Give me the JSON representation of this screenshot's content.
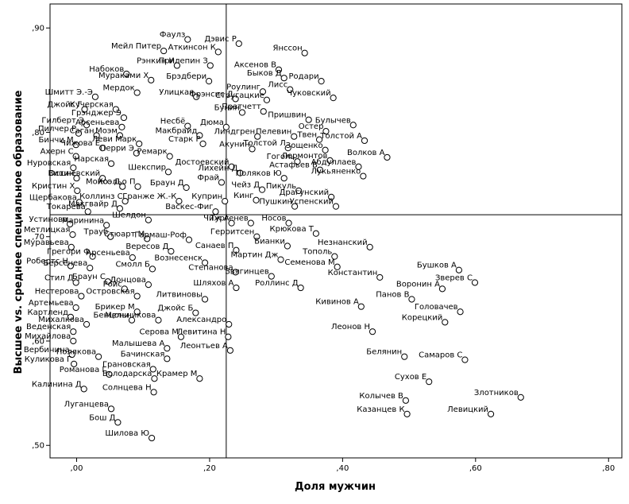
{
  "chart_data": {
    "type": "scatter",
    "title": "",
    "xlabel": "Доля мужчин",
    "ylabel": "Высшее vs. среднее специальное образование",
    "xlim": [
      -0.04,
      0.82
    ],
    "ylim": [
      0.488,
      0.923
    ],
    "xticks": [
      0.0,
      0.2,
      0.4,
      0.6,
      0.8
    ],
    "yticks": [
      0.5,
      0.6,
      0.7,
      0.8,
      0.9
    ],
    "xtick_labels": [
      ",00",
      ",20",
      ",40",
      ",60",
      ",80"
    ],
    "ytick_labels": [
      ",50",
      ",60",
      ",70",
      ",80",
      ",90"
    ],
    "reference_lines": {
      "x": 0.225,
      "y": 0.721
    },
    "grid": false,
    "legend": "none",
    "points": [
      {
        "label": "Фаулз",
        "x": 0.167,
        "y": 0.889
      },
      {
        "label": "Дэвис Р",
        "x": 0.244,
        "y": 0.885
      },
      {
        "label": "Мейл Питер",
        "x": 0.131,
        "y": 0.878
      },
      {
        "label": "Аткинсон К",
        "x": 0.213,
        "y": 0.877
      },
      {
        "label": "Янссон",
        "x": 0.343,
        "y": 0.876
      },
      {
        "label": "Аксенов В",
        "x": 0.304,
        "y": 0.86
      },
      {
        "label": "Рэнкин И",
        "x": 0.151,
        "y": 0.864
      },
      {
        "label": "Прилепин З",
        "x": 0.201,
        "y": 0.864
      },
      {
        "label": "Набоков",
        "x": 0.075,
        "y": 0.856
      },
      {
        "label": "Быков Д",
        "x": 0.312,
        "y": 0.852
      },
      {
        "label": "Мураками Х",
        "x": 0.112,
        "y": 0.85
      },
      {
        "label": "Брэдбери",
        "x": 0.199,
        "y": 0.849
      },
      {
        "label": "Родари",
        "x": 0.368,
        "y": 0.849
      },
      {
        "label": "Лисс",
        "x": 0.321,
        "y": 0.841
      },
      {
        "label": "Роулинг",
        "x": 0.28,
        "y": 0.839
      },
      {
        "label": "Мердок",
        "x": 0.091,
        "y": 0.838
      },
      {
        "label": "Улицкая",
        "x": 0.18,
        "y": 0.834
      },
      {
        "label": "Фрэнсис Д",
        "x": 0.239,
        "y": 0.832
      },
      {
        "label": "Стругацкие",
        "x": 0.286,
        "y": 0.831
      },
      {
        "label": "Чуковский",
        "x": 0.386,
        "y": 0.833
      },
      {
        "label": "Шмитт Э.-Э",
        "x": 0.028,
        "y": 0.834
      },
      {
        "label": "Джойс Г",
        "x": 0.012,
        "y": 0.822
      },
      {
        "label": "Кучерская",
        "x": 0.059,
        "y": 0.822
      },
      {
        "label": "Бунин",
        "x": 0.249,
        "y": 0.819
      },
      {
        "label": "Пратчетт",
        "x": 0.281,
        "y": 0.82
      },
      {
        "label": "Грэнджер Э",
        "x": 0.071,
        "y": 0.814
      },
      {
        "label": "Пришвин",
        "x": 0.349,
        "y": 0.812
      },
      {
        "label": "Гилберт Э",
        "x": 0.015,
        "y": 0.807
      },
      {
        "label": "Булычев",
        "x": 0.416,
        "y": 0.807
      },
      {
        "label": "Арсеньева",
        "x": 0.068,
        "y": 0.805
      },
      {
        "label": "Несбё",
        "x": 0.167,
        "y": 0.806
      },
      {
        "label": "Дюма",
        "x": 0.225,
        "y": 0.805
      },
      {
        "label": "Остер",
        "x": 0.375,
        "y": 0.801
      },
      {
        "label": "Пилчер Р",
        "x": 0.003,
        "y": 0.799
      },
      {
        "label": "Саган",
        "x": 0.03,
        "y": 0.797
      },
      {
        "label": "Моэм",
        "x": 0.065,
        "y": 0.797
      },
      {
        "label": "Макбрайд",
        "x": 0.185,
        "y": 0.797
      },
      {
        "label": "Линдгрен",
        "x": 0.272,
        "y": 0.796
      },
      {
        "label": "Пелевин",
        "x": 0.327,
        "y": 0.796
      },
      {
        "label": "Твен",
        "x": 0.365,
        "y": 0.793
      },
      {
        "label": "Толстой А",
        "x": 0.433,
        "y": 0.792
      },
      {
        "label": "Бинчи М",
        "x": -0.001,
        "y": 0.788
      },
      {
        "label": "Леви Марк",
        "x": 0.094,
        "y": 0.789
      },
      {
        "label": "Старк Р",
        "x": 0.19,
        "y": 0.789
      },
      {
        "label": "Акунин",
        "x": 0.264,
        "y": 0.784
      },
      {
        "label": "Чижова Е",
        "x": 0.039,
        "y": 0.785
      },
      {
        "label": "Толстой Л",
        "x": 0.318,
        "y": 0.785
      },
      {
        "label": "Зощенко",
        "x": 0.374,
        "y": 0.783
      },
      {
        "label": "Ахерн С",
        "x": -0.001,
        "y": 0.777
      },
      {
        "label": "Перри Э",
        "x": 0.09,
        "y": 0.78
      },
      {
        "label": "Ремарк",
        "x": 0.14,
        "y": 0.777
      },
      {
        "label": "Лермонтов",
        "x": 0.381,
        "y": 0.773
      },
      {
        "label": "Волков А",
        "x": 0.467,
        "y": 0.776
      },
      {
        "label": "Нарская",
        "x": 0.052,
        "y": 0.77
      },
      {
        "label": "Достоевский",
        "x": 0.233,
        "y": 0.767
      },
      {
        "label": "Гоголь",
        "x": 0.332,
        "y": 0.772
      },
      {
        "label": "Абдуллаев",
        "x": 0.424,
        "y": 0.767
      },
      {
        "label": "Нуровская",
        "x": -0.005,
        "y": 0.766
      },
      {
        "label": "Шекспир",
        "x": 0.138,
        "y": 0.762
      },
      {
        "label": "Лихейн Д",
        "x": 0.246,
        "y": 0.761
      },
      {
        "label": "Астафьев В",
        "x": 0.366,
        "y": 0.764
      },
      {
        "label": "Остин",
        "x": 0.0,
        "y": 0.756
      },
      {
        "label": "Вишневский",
        "x": 0.039,
        "y": 0.756
      },
      {
        "label": "Лукьяненко",
        "x": 0.431,
        "y": 0.758
      },
      {
        "label": "Поляков Ю",
        "x": 0.312,
        "y": 0.756
      },
      {
        "label": "Фрай",
        "x": 0.218,
        "y": 0.752
      },
      {
        "label": "Моисс Д",
        "x": 0.069,
        "y": 0.748
      },
      {
        "label": "Коэльо П",
        "x": 0.092,
        "y": 0.748
      },
      {
        "label": "Браун Д",
        "x": 0.165,
        "y": 0.747
      },
      {
        "label": "Кристин Х",
        "x": 0.001,
        "y": 0.744
      },
      {
        "label": "Чейз Д",
        "x": 0.279,
        "y": 0.745
      },
      {
        "label": "Пикуль",
        "x": 0.334,
        "y": 0.744
      },
      {
        "label": "Куприн",
        "x": 0.223,
        "y": 0.734
      },
      {
        "label": "Кинг",
        "x": 0.27,
        "y": 0.735
      },
      {
        "label": "Драгунский",
        "x": 0.383,
        "y": 0.738
      },
      {
        "label": "Щербакова",
        "x": 0.004,
        "y": 0.733
      },
      {
        "label": "Коллинз С",
        "x": 0.073,
        "y": 0.734
      },
      {
        "label": "Гранже Ж.-К",
        "x": 0.154,
        "y": 0.734
      },
      {
        "label": "Пушкин",
        "x": 0.328,
        "y": 0.729
      },
      {
        "label": "Успенский",
        "x": 0.39,
        "y": 0.729
      },
      {
        "label": "Макгвайр Д",
        "x": 0.065,
        "y": 0.727
      },
      {
        "label": "Токарева",
        "x": 0.017,
        "y": 0.724
      },
      {
        "label": "Васкес-Фиг",
        "x": 0.209,
        "y": 0.724
      },
      {
        "label": "Шелдон",
        "x": 0.108,
        "y": 0.716
      },
      {
        "label": "Чиж А",
        "x": 0.233,
        "y": 0.713
      },
      {
        "label": "Тургенев",
        "x": 0.262,
        "y": 0.713
      },
      {
        "label": "Носов",
        "x": 0.319,
        "y": 0.713
      },
      {
        "label": "Устинова",
        "x": -0.01,
        "y": 0.712
      },
      {
        "label": "Маринина",
        "x": 0.045,
        "y": 0.711
      },
      {
        "label": "Метлицкая",
        "x": -0.006,
        "y": 0.702
      },
      {
        "label": "Трауб",
        "x": 0.051,
        "y": 0.7
      },
      {
        "label": "Стюарт М",
        "x": 0.106,
        "y": 0.698
      },
      {
        "label": "Гармаш-Роф",
        "x": 0.169,
        "y": 0.697
      },
      {
        "label": "Герритсен",
        "x": 0.271,
        "y": 0.7
      },
      {
        "label": "Крюкова Т",
        "x": 0.36,
        "y": 0.703
      },
      {
        "label": "Муравьева",
        "x": -0.008,
        "y": 0.69
      },
      {
        "label": "Вересов Д",
        "x": 0.142,
        "y": 0.686
      },
      {
        "label": "Санаев П",
        "x": 0.24,
        "y": 0.687
      },
      {
        "label": "Бианки",
        "x": 0.317,
        "y": 0.691
      },
      {
        "label": "Незнанский",
        "x": 0.441,
        "y": 0.69
      },
      {
        "label": "Грегори Ф",
        "x": 0.024,
        "y": 0.681
      },
      {
        "label": "Арсеньева",
        "x": 0.084,
        "y": 0.68
      },
      {
        "label": "Тополь",
        "x": 0.388,
        "y": 0.681
      },
      {
        "label": "Мартин Дж",
        "x": 0.307,
        "y": 0.678
      },
      {
        "label": "Робертс Н",
        "x": -0.009,
        "y": 0.672
      },
      {
        "label": "Вознесенск",
        "x": 0.193,
        "y": 0.675
      },
      {
        "label": "Семенова М",
        "x": 0.392,
        "y": 0.671
      },
      {
        "label": "Берсенева",
        "x": 0.02,
        "y": 0.67
      },
      {
        "label": "Смолл Б",
        "x": 0.114,
        "y": 0.669
      },
      {
        "label": "Бушков А",
        "x": 0.575,
        "y": 0.668
      },
      {
        "label": "Степанова",
        "x": 0.239,
        "y": 0.666
      },
      {
        "label": "Звягинцев",
        "x": 0.293,
        "y": 0.662
      },
      {
        "label": "Константин",
        "x": 0.456,
        "y": 0.661
      },
      {
        "label": "Зверев С",
        "x": 0.599,
        "y": 0.656
      },
      {
        "label": "Стил Д",
        "x": -0.001,
        "y": 0.656
      },
      {
        "label": "Браун С",
        "x": 0.047,
        "y": 0.657
      },
      {
        "label": "Донцова",
        "x": 0.108,
        "y": 0.654
      },
      {
        "label": "Шляхов А",
        "x": 0.24,
        "y": 0.651
      },
      {
        "label": "Роллинс Д",
        "x": 0.337,
        "y": 0.651
      },
      {
        "label": "Воронин А",
        "x": 0.55,
        "y": 0.65
      },
      {
        "label": "Ройс",
        "x": 0.072,
        "y": 0.65
      },
      {
        "label": "Нестерова",
        "x": 0.007,
        "y": 0.643
      },
      {
        "label": "Островская",
        "x": 0.091,
        "y": 0.643
      },
      {
        "label": "Литвиновы",
        "x": 0.193,
        "y": 0.64
      },
      {
        "label": "Панов В",
        "x": 0.504,
        "y": 0.64
      },
      {
        "label": "Артемьева",
        "x": -0.001,
        "y": 0.632
      },
      {
        "label": "Кивинов А",
        "x": 0.428,
        "y": 0.633
      },
      {
        "label": "Брикер М",
        "x": 0.091,
        "y": 0.628
      },
      {
        "label": "Джойс Б",
        "x": 0.179,
        "y": 0.627
      },
      {
        "label": "Головачев",
        "x": 0.577,
        "y": 0.628
      },
      {
        "label": "Картленд",
        "x": -0.009,
        "y": 0.623
      },
      {
        "label": "Бенцони",
        "x": 0.083,
        "y": 0.62
      },
      {
        "label": "Мельникова",
        "x": 0.123,
        "y": 0.62
      },
      {
        "label": "Михалкова",
        "x": 0.015,
        "y": 0.616
      },
      {
        "label": "Корецкий",
        "x": 0.554,
        "y": 0.618
      },
      {
        "label": "Веденская",
        "x": -0.005,
        "y": 0.609
      },
      {
        "label": "Александро",
        "x": 0.229,
        "y": 0.616
      },
      {
        "label": "Леонов Н",
        "x": 0.445,
        "y": 0.609
      },
      {
        "label": "Серова М",
        "x": 0.157,
        "y": 0.604
      },
      {
        "label": "Левитина Н",
        "x": 0.228,
        "y": 0.604
      },
      {
        "label": "Михайлова",
        "x": -0.005,
        "y": 0.6
      },
      {
        "label": "Малышева А",
        "x": 0.136,
        "y": 0.593
      },
      {
        "label": "Леонтьев А",
        "x": 0.231,
        "y": 0.591
      },
      {
        "label": "Вербинина",
        "x": -0.007,
        "y": 0.587
      },
      {
        "label": "Полякова",
        "x": 0.033,
        "y": 0.585
      },
      {
        "label": "Бачинская",
        "x": 0.136,
        "y": 0.583
      },
      {
        "label": "Белянин",
        "x": 0.493,
        "y": 0.585
      },
      {
        "label": "Самаров С",
        "x": 0.584,
        "y": 0.582
      },
      {
        "label": "Куликова Г",
        "x": -0.004,
        "y": 0.578
      },
      {
        "label": "Грановская",
        "x": 0.115,
        "y": 0.573
      },
      {
        "label": "Романова Г",
        "x": 0.049,
        "y": 0.568
      },
      {
        "label": "Володарска",
        "x": 0.117,
        "y": 0.564
      },
      {
        "label": "Крамер М",
        "x": 0.185,
        "y": 0.564
      },
      {
        "label": "Сухов Е",
        "x": 0.53,
        "y": 0.561
      },
      {
        "label": "Калинина Д",
        "x": 0.011,
        "y": 0.554
      },
      {
        "label": "Солнцева Н",
        "x": 0.116,
        "y": 0.551
      },
      {
        "label": "Злотников",
        "x": 0.668,
        "y": 0.546
      },
      {
        "label": "Колычев В",
        "x": 0.495,
        "y": 0.543
      },
      {
        "label": "Луганцева",
        "x": 0.052,
        "y": 0.535
      },
      {
        "label": "Казанцев К",
        "x": 0.497,
        "y": 0.53
      },
      {
        "label": "Левицкий",
        "x": 0.623,
        "y": 0.53
      },
      {
        "label": "Бош Д",
        "x": 0.062,
        "y": 0.522
      },
      {
        "label": "Шилова Ю",
        "x": 0.113,
        "y": 0.507
      }
    ]
  }
}
